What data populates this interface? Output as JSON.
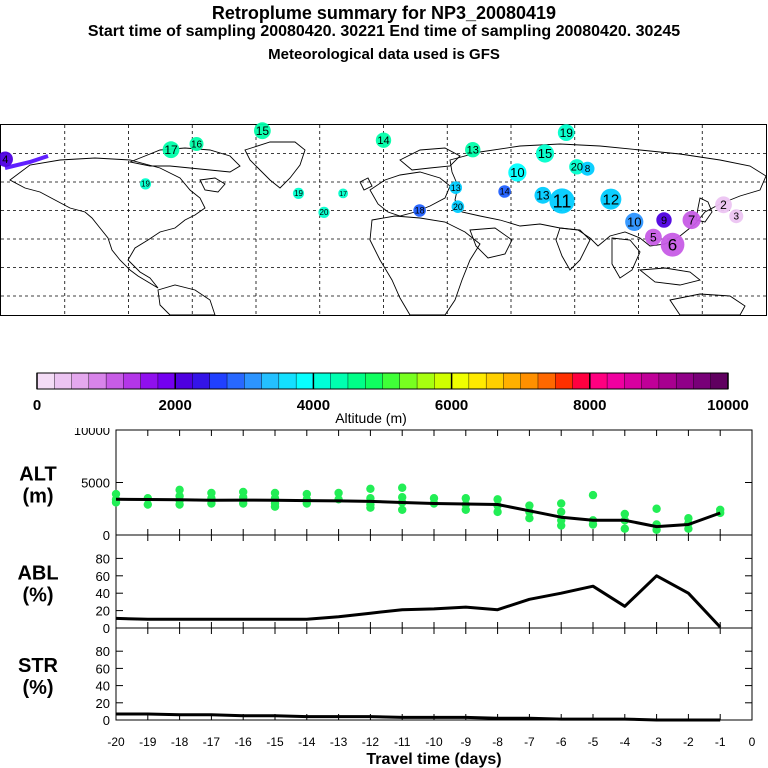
{
  "header": {
    "title": "Retroplume summary for NP3_20080419",
    "line2": "Start time of sampling 20080420. 30221     End time of sampling 20080420. 30245",
    "line3": "Meteorological data used is GFS"
  },
  "colorbar": {
    "ticks": [
      "0",
      "2000",
      "4000",
      "6000",
      "8000",
      "10000"
    ],
    "label": "Altitude (m)",
    "colors": [
      "#f4dcf6",
      "#ecc4f2",
      "#e4a8ee",
      "#d884ea",
      "#c75ce6",
      "#b336e8",
      "#9010ee",
      "#7400f0",
      "#4e00e0",
      "#3414e8",
      "#2040ff",
      "#2868ff",
      "#2c94ff",
      "#24c0ff",
      "#14e0ff",
      "#08ffff",
      "#00ffd8",
      "#00ffb0",
      "#00ff88",
      "#10ff60",
      "#40ff38",
      "#78ff20",
      "#a8ff10",
      "#d0ff00",
      "#f0ff00",
      "#ffea00",
      "#ffd000",
      "#ffb000",
      "#ff9000",
      "#ff6800",
      "#ff3000",
      "#ff0040",
      "#ff0080",
      "#f000a0",
      "#d800a0",
      "#c00098",
      "#a80090",
      "#900088",
      "#780078",
      "#600060"
    ]
  },
  "map": {
    "labels": [
      {
        "n": "15",
        "lon": -57,
        "lat": 87,
        "c": "#00ffaa",
        "s": 12
      },
      {
        "n": "14",
        "lon": 0,
        "lat": 82,
        "c": "#00ffaa",
        "s": 11
      },
      {
        "n": "16",
        "lon": -88,
        "lat": 80,
        "c": "#00ffaa",
        "s": 10
      },
      {
        "n": "17",
        "lon": -100,
        "lat": 77,
        "c": "#00ffaa",
        "s": 12
      },
      {
        "n": "13",
        "lon": 42,
        "lat": 77,
        "c": "#00ffaa",
        "s": 11
      },
      {
        "n": "19",
        "lon": 86,
        "lat": 86,
        "c": "#00ffcc",
        "s": 12
      },
      {
        "n": "15",
        "lon": 76,
        "lat": 75,
        "c": "#00ffcc",
        "s": 13
      },
      {
        "n": "20",
        "lon": 91,
        "lat": 68,
        "c": "#00ffcc",
        "s": 11
      },
      {
        "n": "10",
        "lon": 63,
        "lat": 65,
        "c": "#00ffff",
        "s": 13
      },
      {
        "n": "11",
        "lon": 84,
        "lat": 50,
        "c": "#00ccff",
        "s": 18
      },
      {
        "n": "12",
        "lon": 107,
        "lat": 51,
        "c": "#00ccff",
        "s": 15
      },
      {
        "n": "13",
        "lon": 75,
        "lat": 53,
        "c": "#00ccff",
        "s": 12
      },
      {
        "n": "14",
        "lon": 57,
        "lat": 55,
        "c": "#2060ff",
        "s": 9
      },
      {
        "n": "13",
        "lon": 34,
        "lat": 57,
        "c": "#00ccff",
        "s": 9
      },
      {
        "n": "20",
        "lon": 35,
        "lat": 47,
        "c": "#00ccff",
        "s": 9
      },
      {
        "n": "18",
        "lon": 17,
        "lat": 45,
        "c": "#2060ff",
        "s": 9
      },
      {
        "n": "19",
        "lon": -40,
        "lat": 54,
        "c": "#00ffcc",
        "s": 8
      },
      {
        "n": "20",
        "lon": -28,
        "lat": 44,
        "c": "#00ffcc",
        "s": 8
      },
      {
        "n": "17",
        "lon": -19,
        "lat": 54,
        "c": "#00ffcc",
        "s": 7
      },
      {
        "n": "19",
        "lon": -112,
        "lat": 59,
        "c": "#00ffcc",
        "s": 8
      },
      {
        "n": "10",
        "lon": 118,
        "lat": 39,
        "c": "#2c94ff",
        "s": 13
      },
      {
        "n": "9",
        "lon": 132,
        "lat": 40,
        "c": "#4e00e0",
        "s": 11
      },
      {
        "n": "7",
        "lon": 145,
        "lat": 40,
        "c": "#c75ce6",
        "s": 13
      },
      {
        "n": "6",
        "lon": 136,
        "lat": 27,
        "c": "#c75ce6",
        "s": 17
      },
      {
        "n": "5",
        "lon": 127,
        "lat": 31,
        "c": "#c75ce6",
        "s": 12
      },
      {
        "n": "2",
        "lon": 160,
        "lat": 48,
        "c": "#ecc4f2",
        "s": 12
      },
      {
        "n": "3",
        "lon": 166,
        "lat": 42,
        "c": "#ecc4f2",
        "s": 10
      },
      {
        "n": "8",
        "lon": 96,
        "lat": 67,
        "c": "#00ccff",
        "s": 10
      },
      {
        "n": "4",
        "lon": -178,
        "lat": 72,
        "c": "#4e00e0",
        "s": 11
      }
    ]
  },
  "chart_data": [
    {
      "type": "line",
      "panel": "ALT",
      "title": "ALT",
      "ylabel": "(m)",
      "ylim": [
        0,
        10000
      ],
      "yticks": [
        "10000",
        "5000",
        "0"
      ],
      "xlabel": "Travel time (days)",
      "xlim": [
        -20,
        0
      ],
      "xticks": [
        "-20",
        "-19",
        "-18",
        "-17",
        "-16",
        "-15",
        "-14",
        "-13",
        "-12",
        "-11",
        "-10",
        "-9",
        "-8",
        "-7",
        "-6",
        "-5",
        "-4",
        "-3",
        "-2",
        "-1",
        "0"
      ],
      "x": [
        -20,
        -19,
        -18,
        -17,
        -16,
        -15,
        -14,
        -13,
        -12,
        -11,
        -10,
        -9,
        -8,
        -7,
        -6,
        -5,
        -4,
        -3,
        -2,
        -1
      ],
      "values": [
        3400,
        3380,
        3350,
        3300,
        3320,
        3300,
        3280,
        3250,
        3200,
        3100,
        3000,
        2950,
        2900,
        2300,
        1700,
        1400,
        1400,
        800,
        1000,
        2100
      ],
      "scatter": [
        [
          -20,
          3900
        ],
        [
          -20,
          3400
        ],
        [
          -20,
          3100
        ],
        [
          -19,
          3500
        ],
        [
          -19,
          2900
        ],
        [
          -18,
          4300
        ],
        [
          -18,
          3700
        ],
        [
          -18,
          3300
        ],
        [
          -18,
          2900
        ],
        [
          -17,
          4000
        ],
        [
          -17,
          3500
        ],
        [
          -17,
          3000
        ],
        [
          -16,
          4100
        ],
        [
          -16,
          3600
        ],
        [
          -16,
          3000
        ],
        [
          -15,
          4000
        ],
        [
          -15,
          3500
        ],
        [
          -15,
          3000
        ],
        [
          -15,
          2700
        ],
        [
          -14,
          3900
        ],
        [
          -14,
          3400
        ],
        [
          -14,
          3000
        ],
        [
          -13,
          4000
        ],
        [
          -13,
          3400
        ],
        [
          -12,
          4400
        ],
        [
          -12,
          3500
        ],
        [
          -12,
          2900
        ],
        [
          -12,
          2600
        ],
        [
          -11,
          4500
        ],
        [
          -11,
          3600
        ],
        [
          -11,
          3100
        ],
        [
          -11,
          2400
        ],
        [
          -10,
          3500
        ],
        [
          -10,
          3000
        ],
        [
          -9,
          3500
        ],
        [
          -9,
          2900
        ],
        [
          -9,
          2400
        ],
        [
          -8,
          3400
        ],
        [
          -8,
          2800
        ],
        [
          -8,
          2200
        ],
        [
          -7,
          2800
        ],
        [
          -7,
          2200
        ],
        [
          -7,
          1600
        ],
        [
          -6,
          3000
        ],
        [
          -6,
          2200
        ],
        [
          -6,
          1400
        ],
        [
          -6,
          900
        ],
        [
          -5,
          3800
        ],
        [
          -5,
          1400
        ],
        [
          -5,
          1000
        ],
        [
          -4,
          2000
        ],
        [
          -4,
          1400
        ],
        [
          -4,
          600
        ],
        [
          -3,
          2500
        ],
        [
          -3,
          1000
        ],
        [
          -3,
          500
        ],
        [
          -2,
          1600
        ],
        [
          -2,
          1100
        ],
        [
          -2,
          600
        ],
        [
          -1,
          2400
        ],
        [
          -1,
          2100
        ]
      ]
    },
    {
      "type": "line",
      "panel": "ABL",
      "title": "ABL",
      "ylabel": "(%)",
      "ylim": [
        0,
        100
      ],
      "yticks": [
        "80",
        "60",
        "40",
        "20",
        "0"
      ],
      "x": [
        -20,
        -19,
        -18,
        -17,
        -16,
        -15,
        -14,
        -13,
        -12,
        -11,
        -10,
        -9,
        -8,
        -7,
        -6,
        -5,
        -4,
        -3,
        -2,
        -1
      ],
      "values": [
        11,
        10,
        10,
        10,
        10,
        10,
        10,
        13,
        17,
        21,
        22,
        24,
        21,
        33,
        40,
        48,
        25,
        60,
        40,
        1
      ]
    },
    {
      "type": "line",
      "panel": "STR",
      "title": "STR",
      "ylabel": "(%)",
      "ylim": [
        0,
        100
      ],
      "yticks": [
        "80",
        "60",
        "40",
        "20",
        "0"
      ],
      "x": [
        -20,
        -19,
        -18,
        -17,
        -16,
        -15,
        -14,
        -13,
        -12,
        -11,
        -10,
        -9,
        -8,
        -7,
        -6,
        -5,
        -4,
        -3,
        -2,
        -1
      ],
      "values": [
        7,
        7,
        6,
        6,
        5,
        5,
        4,
        4,
        4,
        3,
        3,
        3,
        2,
        2,
        1,
        1,
        1,
        0,
        0,
        0
      ]
    }
  ]
}
